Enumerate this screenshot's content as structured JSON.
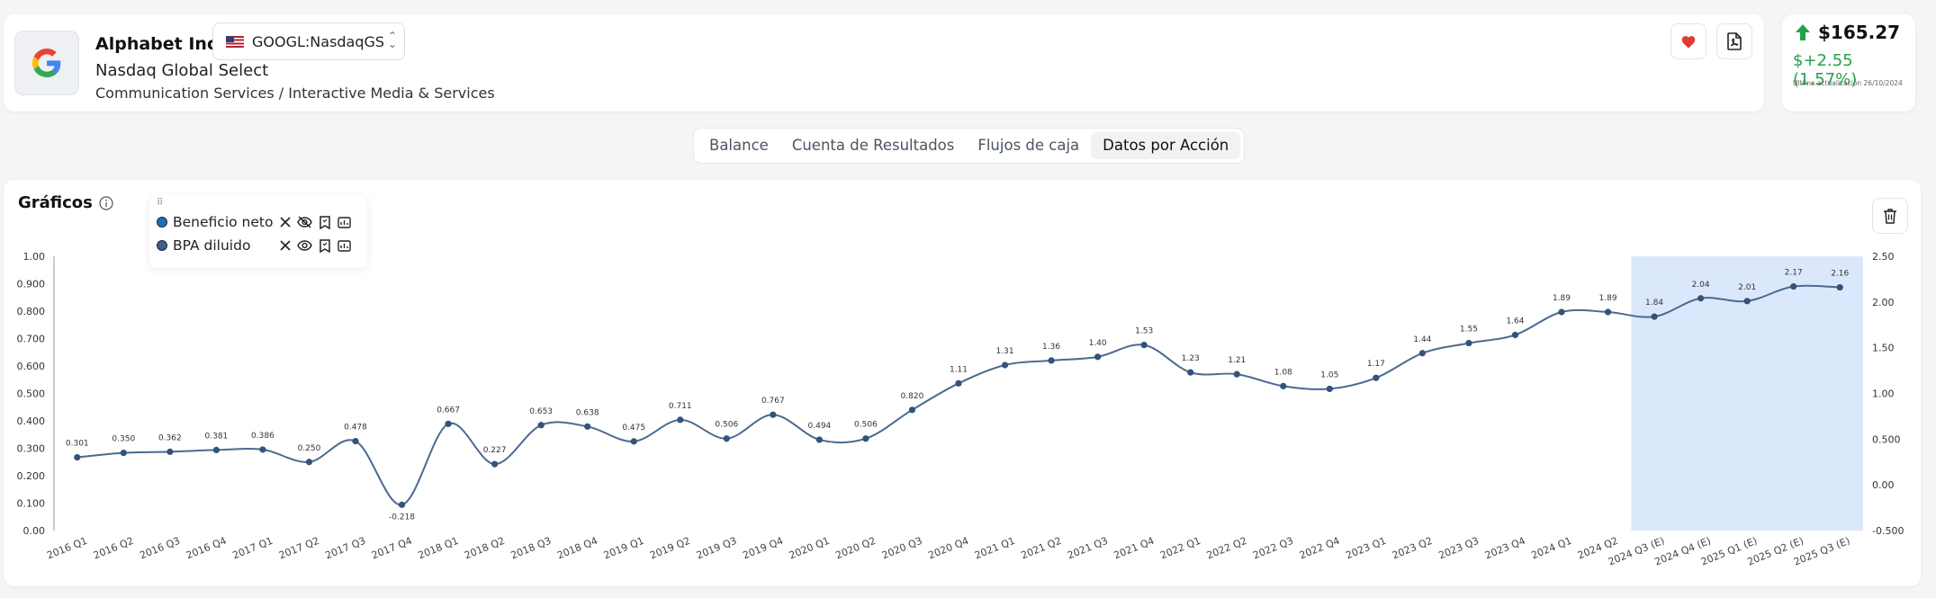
{
  "header": {
    "company_name": "Alphabet Inc.",
    "ticker_select_value": "GOOGL:NasdaqGS",
    "exchange": "Nasdaq Global Select",
    "sector": "Communication Services / Interactive Media & Services"
  },
  "price": {
    "value": "$165.27",
    "change": "$+2.55 (1.57%)",
    "updated": "Última actualización 26/10/2024",
    "direction": "up",
    "color_up": "#22a34a"
  },
  "tabs": [
    {
      "label": "Balance",
      "active": false
    },
    {
      "label": "Cuenta de Resultados",
      "active": false
    },
    {
      "label": "Flujos de caja",
      "active": false
    },
    {
      "label": "Datos por Acción",
      "active": true
    }
  ],
  "chart_section": {
    "title": "Gráficos",
    "legend": [
      {
        "label": "Beneficio neto",
        "color": "#1d6fb8",
        "visible": false
      },
      {
        "label": "BPA diluido",
        "color": "#3f5f8a",
        "visible": true
      }
    ]
  },
  "chart_data": {
    "type": "line",
    "categories": [
      "2016 Q1",
      "2016 Q2",
      "2016 Q3",
      "2016 Q4",
      "2017 Q1",
      "2017 Q2",
      "2017 Q3",
      "2017 Q4",
      "2018 Q1",
      "2018 Q2",
      "2018 Q3",
      "2018 Q4",
      "2019 Q1",
      "2019 Q2",
      "2019 Q3",
      "2019 Q4",
      "2020 Q1",
      "2020 Q2",
      "2020 Q3",
      "2020 Q4",
      "2021 Q1",
      "2021 Q2",
      "2021 Q3",
      "2021 Q4",
      "2022 Q1",
      "2022 Q2",
      "2022 Q3",
      "2022 Q4",
      "2023 Q1",
      "2023 Q2",
      "2023 Q3",
      "2023 Q4",
      "2024 Q1",
      "2024 Q2",
      "2024 Q3 (E)",
      "2024 Q4 (E)",
      "2025 Q1 (E)",
      "2025 Q2 (E)",
      "2025 Q3 (E)"
    ],
    "series": [
      {
        "name": "BPA diluido",
        "color": "#4b6a8f",
        "values": [
          0.301,
          0.35,
          0.362,
          0.381,
          0.386,
          0.25,
          0.478,
          -0.218,
          0.667,
          0.227,
          0.653,
          0.638,
          0.475,
          0.711,
          0.506,
          0.767,
          0.494,
          0.506,
          0.82,
          1.11,
          1.31,
          1.36,
          1.4,
          1.53,
          1.23,
          1.21,
          1.08,
          1.05,
          1.17,
          1.44,
          1.55,
          1.64,
          1.89,
          1.89,
          1.84,
          2.04,
          2.01,
          2.17,
          2.16
        ],
        "labels": [
          "0.301",
          "0.350",
          "0.362",
          "0.381",
          "0.386",
          "0.250",
          "0.478",
          "-0.218",
          "0.667",
          "0.227",
          "0.653",
          "0.638",
          "0.475",
          "0.711",
          "0.506",
          "0.767",
          "0.494",
          "0.506",
          "0.820",
          "1.11",
          "1.31",
          "1.36",
          "1.40",
          "1.53",
          "1.23",
          "1.21",
          "1.08",
          "1.05",
          "1.17",
          "1.44",
          "1.55",
          "1.64",
          "1.89",
          "1.89",
          "1.84",
          "2.04",
          "2.01",
          "2.17",
          "2.16"
        ]
      }
    ],
    "y_left_ticks": [
      "1.00",
      "0.900",
      "0.800",
      "0.700",
      "0.600",
      "0.500",
      "0.400",
      "0.300",
      "0.200",
      "0.100",
      "0.00"
    ],
    "y_left_range": [
      0,
      1
    ],
    "y_right_ticks": [
      "2.50",
      "2.00",
      "1.50",
      "1.00",
      "0.500",
      "0.00",
      "-0.500"
    ],
    "y_right_range": [
      -0.5,
      2.5
    ],
    "estimate_start_index": 34,
    "estimate_highlight_color": "#dbe8fb",
    "grid": false
  }
}
